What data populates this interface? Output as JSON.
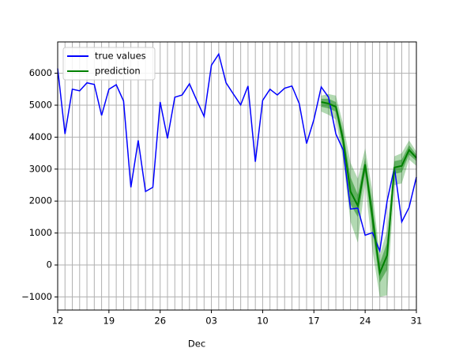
{
  "chart_data": {
    "type": "line",
    "x": [
      0,
      1,
      2,
      3,
      4,
      5,
      6,
      7,
      8,
      9,
      10,
      11,
      12,
      13,
      14,
      15,
      16,
      17,
      18,
      19,
      20,
      21,
      22,
      23,
      24,
      25,
      26,
      27,
      28,
      29,
      30,
      31,
      32,
      33,
      34,
      35,
      36,
      37,
      38,
      39,
      40,
      41,
      42,
      43,
      44,
      45,
      46,
      47,
      48,
      49
    ],
    "xlim": [
      0,
      49
    ],
    "xticks": [
      {
        "value": 0,
        "label": "12"
      },
      {
        "value": 7,
        "label": "19"
      },
      {
        "value": 14,
        "label": "26"
      },
      {
        "value": 21,
        "label": "03"
      },
      {
        "value": 28,
        "label": "10"
      },
      {
        "value": 35,
        "label": "17"
      },
      {
        "value": 42,
        "label": "24"
      },
      {
        "value": 49,
        "label": "31"
      }
    ],
    "month_ticks": [
      {
        "value": 19,
        "label": "Dec"
      }
    ],
    "ylim": [
      -1410,
      6980
    ],
    "yticks": [
      {
        "value": -1000,
        "label": "−1000"
      },
      0,
      1000,
      2000,
      3000,
      4000,
      5000,
      6000
    ],
    "grid": true,
    "legend": "upper left",
    "series": [
      {
        "name": "true values",
        "color": "#0000ff",
        "values": [
          6150,
          4100,
          5500,
          5450,
          5700,
          5650,
          4680,
          5500,
          5640,
          5130,
          2430,
          3900,
          2300,
          2430,
          5100,
          3960,
          5250,
          5320,
          5670,
          5150,
          4650,
          6250,
          6600,
          5700,
          5350,
          5010,
          5600,
          3230,
          5150,
          5500,
          5320,
          5530,
          5600,
          5050,
          3800,
          4550,
          5570,
          5250,
          4100,
          3600,
          1750,
          1780,
          930,
          1010,
          440,
          2000,
          3050,
          1350,
          1800,
          2750
        ]
      },
      {
        "name": "prediction",
        "color": "#008000",
        "values": [
          null,
          null,
          null,
          null,
          null,
          null,
          null,
          null,
          null,
          null,
          null,
          null,
          null,
          null,
          null,
          null,
          null,
          null,
          null,
          null,
          null,
          null,
          null,
          null,
          null,
          null,
          null,
          null,
          null,
          null,
          null,
          null,
          null,
          null,
          null,
          null,
          5100,
          5050,
          4950,
          3900,
          2300,
          1850,
          3150,
          1500,
          -250,
          300,
          3050,
          3100,
          3600,
          3350
        ]
      }
    ],
    "bands": [
      {
        "color": "#008000",
        "opacity": 0.3,
        "lower": [
          null,
          null,
          null,
          null,
          null,
          null,
          null,
          null,
          null,
          null,
          null,
          null,
          null,
          null,
          null,
          null,
          null,
          null,
          null,
          null,
          null,
          null,
          null,
          null,
          null,
          null,
          null,
          null,
          null,
          null,
          null,
          null,
          null,
          null,
          null,
          null,
          4800,
          4700,
          4550,
          3300,
          1350,
          700,
          2550,
          450,
          -1000,
          -950,
          2500,
          2550,
          3300,
          3100
        ],
        "upper": [
          null,
          null,
          null,
          null,
          null,
          null,
          null,
          null,
          null,
          null,
          null,
          null,
          null,
          null,
          null,
          null,
          null,
          null,
          null,
          null,
          null,
          null,
          null,
          null,
          null,
          null,
          null,
          null,
          null,
          null,
          null,
          null,
          null,
          null,
          null,
          null,
          5300,
          5350,
          5300,
          4400,
          3200,
          2700,
          3650,
          2300,
          300,
          1100,
          3400,
          3500,
          3900,
          3550
        ]
      },
      {
        "color": "#008000",
        "opacity": 0.45,
        "lower": [
          null,
          null,
          null,
          null,
          null,
          null,
          null,
          null,
          null,
          null,
          null,
          null,
          null,
          null,
          null,
          null,
          null,
          null,
          null,
          null,
          null,
          null,
          null,
          null,
          null,
          null,
          null,
          null,
          null,
          null,
          null,
          null,
          null,
          null,
          null,
          null,
          4950,
          4900,
          4800,
          3650,
          1900,
          1500,
          2900,
          1100,
          -550,
          -150,
          2850,
          2900,
          3450,
          3250
        ],
        "upper": [
          null,
          null,
          null,
          null,
          null,
          null,
          null,
          null,
          null,
          null,
          null,
          null,
          null,
          null,
          null,
          null,
          null,
          null,
          null,
          null,
          null,
          null,
          null,
          null,
          null,
          null,
          null,
          null,
          null,
          null,
          null,
          null,
          null,
          null,
          null,
          null,
          5200,
          5200,
          5100,
          4150,
          2750,
          2200,
          3350,
          1900,
          50,
          700,
          3250,
          3300,
          3750,
          3450
        ]
      }
    ]
  }
}
